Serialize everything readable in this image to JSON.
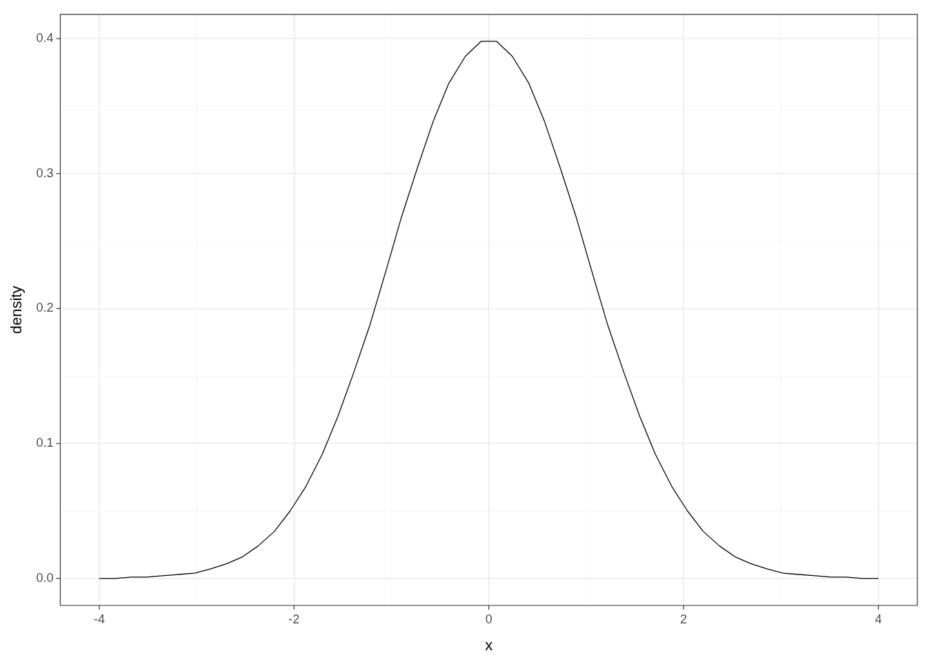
{
  "chart_data": {
    "type": "line",
    "xlabel": "x",
    "ylabel": "density",
    "x": [
      -4,
      -3.84,
      -3.67,
      -3.51,
      -3.35,
      -3.18,
      -3.02,
      -2.86,
      -2.69,
      -2.53,
      -2.37,
      -2.2,
      -2.04,
      -1.88,
      -1.71,
      -1.55,
      -1.39,
      -1.22,
      -1.06,
      -0.9,
      -0.73,
      -0.57,
      -0.41,
      -0.24,
      -0.08,
      0.08,
      0.24,
      0.41,
      0.57,
      0.73,
      0.9,
      1.06,
      1.22,
      1.39,
      1.55,
      1.71,
      1.88,
      2.04,
      2.2,
      2.37,
      2.53,
      2.69,
      2.86,
      3.02,
      3.18,
      3.35,
      3.51,
      3.67,
      3.84,
      4
    ],
    "series": [
      {
        "color": "#000000",
        "values": [
          0.0,
          0.0,
          0.001,
          0.001,
          0.002,
          0.003,
          0.004,
          0.007,
          0.011,
          0.016,
          0.024,
          0.035,
          0.05,
          0.068,
          0.092,
          0.12,
          0.152,
          0.188,
          0.227,
          0.267,
          0.305,
          0.339,
          0.367,
          0.387,
          0.398,
          0.398,
          0.387,
          0.367,
          0.339,
          0.305,
          0.267,
          0.227,
          0.188,
          0.152,
          0.12,
          0.092,
          0.068,
          0.05,
          0.035,
          0.024,
          0.016,
          0.011,
          0.007,
          0.004,
          0.003,
          0.002,
          0.001,
          0.001,
          0.0,
          0.0
        ]
      }
    ],
    "xlim": [
      -4.4,
      4.4
    ],
    "ylim": [
      -0.02,
      0.418
    ],
    "xticks": [
      -4,
      {
        "value": -3,
        "label": null
      },
      -2,
      {
        "value": -1,
        "label": null
      },
      0,
      {
        "value": 1,
        "label": null
      },
      2,
      {
        "value": 3,
        "label": null
      },
      4
    ],
    "yticks": [
      {
        "value": 0,
        "label": "0.0"
      },
      {
        "value": 0.05,
        "label": null
      },
      {
        "value": 0.1,
        "label": "0.1"
      },
      {
        "value": 0.15,
        "label": null
      },
      {
        "value": 0.2,
        "label": "0.2"
      },
      {
        "value": 0.25,
        "label": null
      },
      {
        "value": 0.3,
        "label": "0.3"
      },
      {
        "value": 0.35,
        "label": null
      },
      {
        "value": 0.4,
        "label": "0.4"
      }
    ],
    "grid": true,
    "legend": false,
    "marker": "none",
    "line_style": "solid"
  }
}
